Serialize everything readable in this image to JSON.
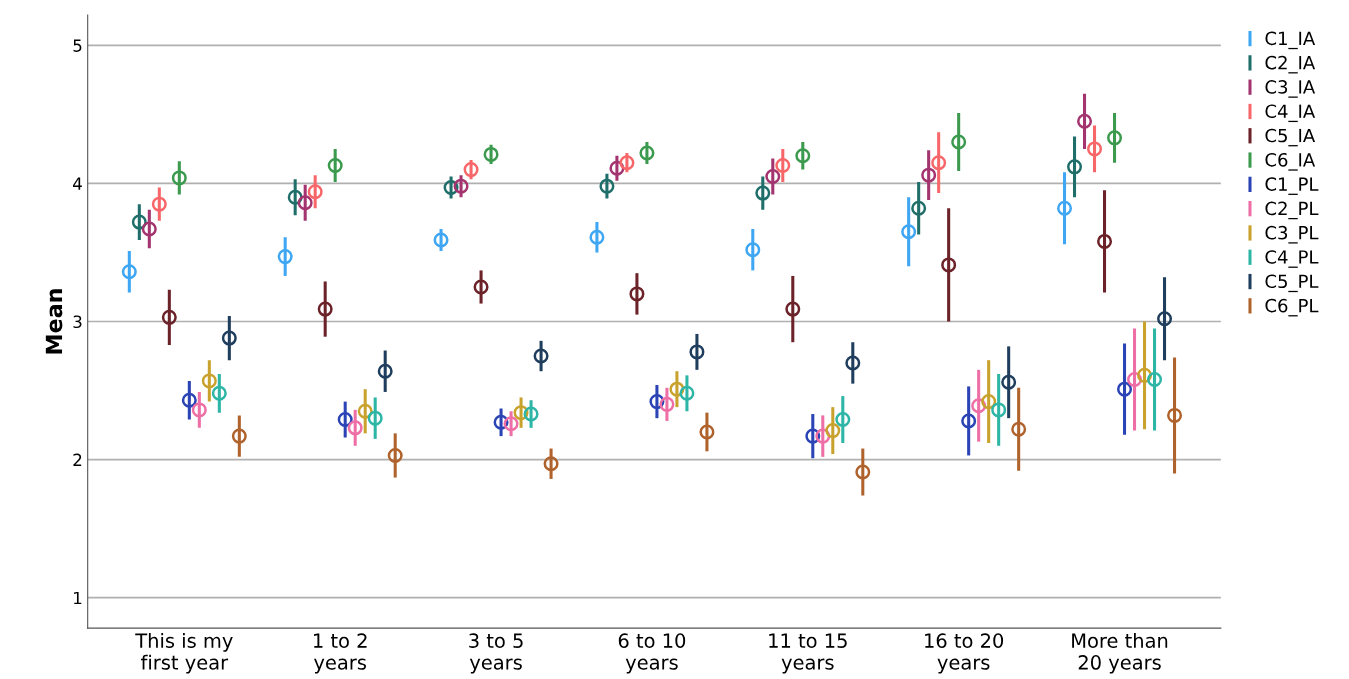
{
  "chart_data": {
    "type": "scatter",
    "ylabel": "Mean",
    "marker": "circle",
    "grid": "y",
    "legend": "top right",
    "categories": [
      "This is my\nfirst year",
      "1 to 2\nyears",
      "3 to 5\nyears",
      "6 to 10\nyears",
      "11 to 15\nyears",
      "16 to 20\nyears",
      "More than\n20 years"
    ],
    "ylim": [
      0.78,
      5.22
    ],
    "yticks": [
      1,
      2,
      3,
      4,
      5
    ],
    "series": [
      {
        "name": "C1_IA",
        "color": "#3ea6f2",
        "values": [
          3.36,
          3.47,
          3.59,
          3.61,
          3.52,
          3.65,
          3.82
        ],
        "errors": [
          0.15,
          0.14,
          0.08,
          0.11,
          0.15,
          0.25,
          0.26
        ]
      },
      {
        "name": "C2_IA",
        "color": "#1f6e6a",
        "values": [
          3.72,
          3.9,
          3.97,
          3.98,
          3.93,
          3.82,
          4.12
        ],
        "errors": [
          0.13,
          0.13,
          0.08,
          0.09,
          0.12,
          0.19,
          0.22
        ]
      },
      {
        "name": "C3_IA",
        "color": "#a3346f",
        "values": [
          3.67,
          3.86,
          3.98,
          4.11,
          4.05,
          4.06,
          4.45
        ],
        "errors": [
          0.14,
          0.13,
          0.08,
          0.09,
          0.13,
          0.18,
          0.2
        ]
      },
      {
        "name": "C4_IA",
        "color": "#f7676a",
        "values": [
          3.85,
          3.94,
          4.1,
          4.15,
          4.13,
          4.15,
          4.25
        ],
        "errors": [
          0.12,
          0.12,
          0.07,
          0.07,
          0.12,
          0.22,
          0.17
        ]
      },
      {
        "name": "C5_IA",
        "color": "#6b2228",
        "values": [
          3.03,
          3.09,
          3.25,
          3.2,
          3.09,
          3.41,
          3.58
        ],
        "errors": [
          0.2,
          0.2,
          0.12,
          0.15,
          0.24,
          0.41,
          0.37
        ]
      },
      {
        "name": "C6_IA",
        "color": "#3c9a4e",
        "values": [
          4.04,
          4.13,
          4.21,
          4.22,
          4.2,
          4.3,
          4.33
        ],
        "errors": [
          0.12,
          0.12,
          0.07,
          0.08,
          0.1,
          0.21,
          0.18
        ]
      },
      {
        "name": "C1_PL",
        "color": "#2a43b5",
        "values": [
          2.43,
          2.29,
          2.27,
          2.42,
          2.17,
          2.28,
          2.51
        ],
        "errors": [
          0.14,
          0.13,
          0.1,
          0.12,
          0.16,
          0.25,
          0.33
        ]
      },
      {
        "name": "C2_PL",
        "color": "#ee6ea6",
        "values": [
          2.36,
          2.23,
          2.26,
          2.4,
          2.17,
          2.39,
          2.58
        ],
        "errors": [
          0.13,
          0.13,
          0.09,
          0.12,
          0.15,
          0.26,
          0.37
        ]
      },
      {
        "name": "C3_PL",
        "color": "#c9a22e",
        "values": [
          2.57,
          2.35,
          2.34,
          2.51,
          2.21,
          2.42,
          2.61
        ],
        "errors": [
          0.15,
          0.16,
          0.11,
          0.13,
          0.17,
          0.3,
          0.39
        ]
      },
      {
        "name": "C4_PL",
        "color": "#2db5a6",
        "values": [
          2.48,
          2.3,
          2.33,
          2.48,
          2.29,
          2.36,
          2.58
        ],
        "errors": [
          0.14,
          0.15,
          0.1,
          0.13,
          0.17,
          0.26,
          0.37
        ]
      },
      {
        "name": "C5_PL",
        "color": "#1f3d5c",
        "values": [
          2.88,
          2.64,
          2.75,
          2.78,
          2.7,
          2.56,
          3.02
        ],
        "errors": [
          0.16,
          0.15,
          0.11,
          0.13,
          0.15,
          0.26,
          0.3
        ]
      },
      {
        "name": "C6_PL",
        "color": "#b0622c",
        "values": [
          2.17,
          2.03,
          1.97,
          2.2,
          1.91,
          2.22,
          2.32
        ],
        "errors": [
          0.15,
          0.16,
          0.11,
          0.14,
          0.17,
          0.3,
          0.42
        ]
      }
    ]
  }
}
